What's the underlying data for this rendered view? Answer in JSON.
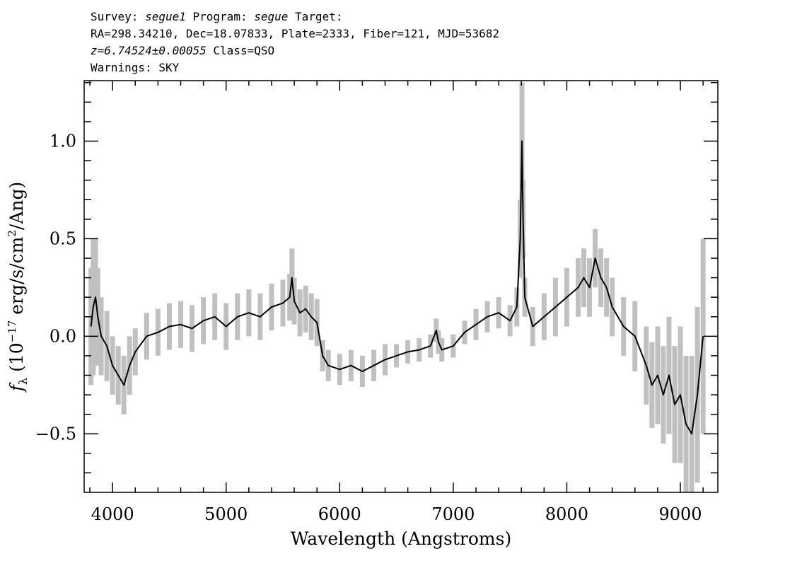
{
  "header": {
    "survey_label": "Survey:",
    "survey_value": "segue1",
    "program_label": "Program:",
    "program_value": "segue",
    "target_label": "Target:",
    "coords_line": "RA=298.34210, Dec=18.07833, Plate=2333, Fiber=121, MJD=53682",
    "redshift_value": "z=6.74524±0.00055",
    "class_text": "Class=QSO",
    "warnings_line": "Warnings: SKY"
  },
  "chart_data": {
    "type": "line",
    "xlabel": "Wavelength (Angstroms)",
    "ylabel_prefix": "f",
    "ylabel_sub": "λ",
    "ylabel_main": " (10",
    "ylabel_exp": "−17",
    "ylabel_rest": " erg/s/cm",
    "ylabel_exp2": "2",
    "ylabel_end": "/Ang)",
    "xlim": [
      3750,
      9330
    ],
    "ylim": [
      -0.8,
      1.31
    ],
    "xticks": [
      4000,
      5000,
      6000,
      7000,
      8000,
      9000
    ],
    "xtick_labels": [
      "4000",
      "5000",
      "6000",
      "7000",
      "8000",
      "9000"
    ],
    "yticks": [
      -0.5,
      0.0,
      0.5,
      1.0
    ],
    "ytick_labels": [
      "−0.5",
      "0.0",
      "0.5",
      "1.0"
    ],
    "grid": false,
    "colors": {
      "flux": "#000000",
      "error_band": "#c0c0c0"
    },
    "series": [
      {
        "role": "flux",
        "x": [
          3810,
          3830,
          3850,
          3870,
          3900,
          3950,
          4000,
          4050,
          4100,
          4150,
          4200,
          4300,
          4400,
          4500,
          4600,
          4700,
          4800,
          4900,
          5000,
          5100,
          5200,
          5300,
          5400,
          5500,
          5560,
          5580,
          5600,
          5650,
          5700,
          5750,
          5800,
          5850,
          5900,
          6000,
          6100,
          6200,
          6300,
          6400,
          6500,
          6600,
          6700,
          6800,
          6850,
          6870,
          6900,
          7000,
          7100,
          7200,
          7300,
          7400,
          7500,
          7560,
          7590,
          7605,
          7615,
          7630,
          7700,
          7800,
          7900,
          8000,
          8100,
          8150,
          8200,
          8250,
          8300,
          8350,
          8400,
          8500,
          8600,
          8700,
          8750,
          8800,
          8850,
          8900,
          8950,
          9000,
          9050,
          9100,
          9150,
          9200
        ],
        "y": [
          0.05,
          0.15,
          0.2,
          0.1,
          0.0,
          -0.05,
          -0.15,
          -0.2,
          -0.25,
          -0.15,
          -0.08,
          0.0,
          0.02,
          0.05,
          0.06,
          0.04,
          0.08,
          0.1,
          0.05,
          0.1,
          0.12,
          0.1,
          0.15,
          0.17,
          0.2,
          0.3,
          0.18,
          0.12,
          0.14,
          0.1,
          0.07,
          -0.1,
          -0.15,
          -0.17,
          -0.15,
          -0.18,
          -0.15,
          -0.12,
          -0.1,
          -0.08,
          -0.07,
          -0.05,
          0.03,
          -0.03,
          -0.07,
          -0.05,
          0.02,
          0.06,
          0.1,
          0.12,
          0.08,
          0.15,
          0.5,
          1.0,
          0.6,
          0.2,
          0.05,
          0.1,
          0.15,
          0.2,
          0.25,
          0.3,
          0.25,
          0.4,
          0.3,
          0.25,
          0.15,
          0.05,
          0.0,
          -0.15,
          -0.25,
          -0.2,
          -0.3,
          -0.2,
          -0.35,
          -0.3,
          -0.45,
          -0.5,
          -0.3,
          0.0
        ],
        "err": [
          0.3,
          0.35,
          0.3,
          0.25,
          0.2,
          0.18,
          0.15,
          0.15,
          0.15,
          0.15,
          0.12,
          0.12,
          0.12,
          0.12,
          0.12,
          0.12,
          0.12,
          0.12,
          0.12,
          0.12,
          0.12,
          0.12,
          0.12,
          0.12,
          0.12,
          0.15,
          0.12,
          0.12,
          0.12,
          0.12,
          0.12,
          0.08,
          0.08,
          0.08,
          0.08,
          0.08,
          0.08,
          0.08,
          0.06,
          0.06,
          0.06,
          0.06,
          0.06,
          0.06,
          0.06,
          0.06,
          0.06,
          0.08,
          0.08,
          0.08,
          0.08,
          0.1,
          0.2,
          0.3,
          0.2,
          0.1,
          0.1,
          0.12,
          0.15,
          0.15,
          0.15,
          0.15,
          0.15,
          0.15,
          0.15,
          0.15,
          0.15,
          0.15,
          0.18,
          0.2,
          0.22,
          0.25,
          0.25,
          0.3,
          0.3,
          0.35,
          0.35,
          0.4,
          0.45,
          0.5
        ]
      }
    ]
  }
}
